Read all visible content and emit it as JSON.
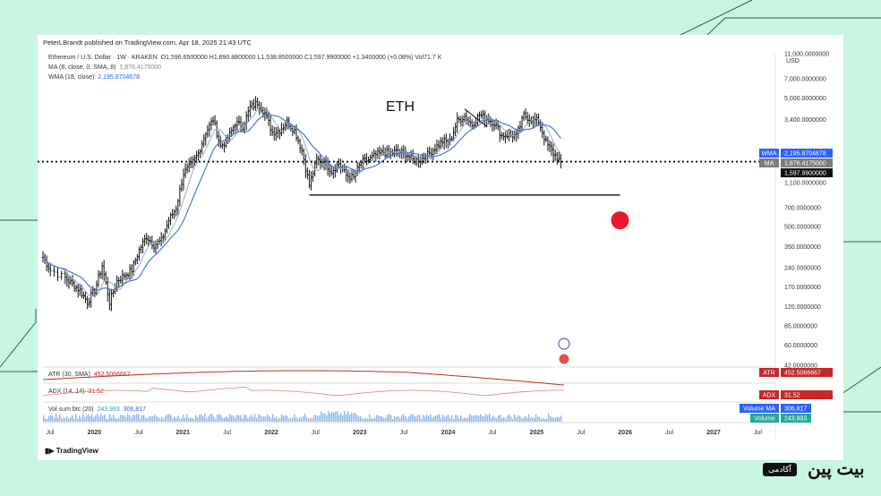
{
  "publisher": "PeterLBrandt published on TradingView.com, Apr 18, 2025 21:43 UTC",
  "legend": {
    "symbol": "Ethereum / U.S. Dollar · 1W · KRAKEN",
    "ohlc": "O1,596.6500000  H1,690.8800000  L1,538.8500000  C1,597.9900000  +1.3400000 (+0.08%)  Vol71.7 K",
    "ma_label": "MA (8, close, 0, SMA, 8)",
    "ma_value": "1,876.4175000",
    "wma_label": "WMA (18, close)",
    "wma_value": "2,195.8704678"
  },
  "colors": {
    "bars": "#111111",
    "wma": "#4a78d8",
    "ma": "#9ea9c9",
    "atr": "#c62828",
    "adx": "#f07a7a",
    "volume": "#8fb8e8",
    "volume_high": "#f2a2a2",
    "annotation_dot": "#e8182f",
    "price_tag": "#111111",
    "wma_tag": "#2962ff",
    "ma_tag": "#7c7c7c"
  },
  "chart_data": {
    "type": "ohlc",
    "currency": "USD",
    "y_scale": "log",
    "ylim": [
      42,
      11000
    ],
    "y_ticks": [
      "11,000.0000000",
      "7,000.0000000",
      "5,000.0000000",
      "3,400.0000000",
      "2,195.8704678",
      "1,876.4175000",
      "1,597.9900000",
      "1,100.0000000",
      "700.0000000",
      "500.0000000",
      "350.0000000",
      "240.0000000",
      "170.0000000",
      "120.0000000",
      "85.0000000",
      "60.0000000",
      "42.0000000"
    ],
    "x_ticks": [
      "Jul",
      "2020",
      "Jul",
      "2021",
      "Jul",
      "2022",
      "Jul",
      "2023",
      "Jul",
      "2024",
      "Jul",
      "2025",
      "Jul",
      "2026",
      "Jul",
      "2027",
      "Jul"
    ],
    "x_range": [
      "2019-06",
      "2027-09"
    ],
    "series": [
      {
        "name": "ETH/USD",
        "points": [
          [
            "2019-06",
            290
          ],
          [
            "2019-07",
            230
          ],
          [
            "2019-09",
            200
          ],
          [
            "2019-10",
            180
          ],
          [
            "2019-11",
            160
          ],
          [
            "2019-12",
            130
          ],
          [
            "2020-01",
            160
          ],
          [
            "2020-02",
            250
          ],
          [
            "2020-03",
            130
          ],
          [
            "2020-04",
            190
          ],
          [
            "2020-05",
            210
          ],
          [
            "2020-06",
            230
          ],
          [
            "2020-07",
            330
          ],
          [
            "2020-08",
            420
          ],
          [
            "2020-09",
            360
          ],
          [
            "2020-10",
            390
          ],
          [
            "2020-11",
            560
          ],
          [
            "2020-12",
            700
          ],
          [
            "2021-01",
            1300
          ],
          [
            "2021-02",
            1500
          ],
          [
            "2021-03",
            1850
          ],
          [
            "2021-04",
            2700
          ],
          [
            "2021-05",
            3400
          ],
          [
            "2021-06",
            2100
          ],
          [
            "2021-07",
            2400
          ],
          [
            "2021-08",
            3200
          ],
          [
            "2021-09",
            3000
          ],
          [
            "2021-10",
            4200
          ],
          [
            "2021-11",
            4600
          ],
          [
            "2021-12",
            3800
          ],
          [
            "2022-01",
            2700
          ],
          [
            "2022-02",
            2800
          ],
          [
            "2022-03",
            3250
          ],
          [
            "2022-04",
            2800
          ],
          [
            "2022-05",
            1950
          ],
          [
            "2022-06",
            1050
          ],
          [
            "2022-07",
            1650
          ],
          [
            "2022-08",
            1600
          ],
          [
            "2022-09",
            1350
          ],
          [
            "2022-10",
            1550
          ],
          [
            "2022-11",
            1250
          ],
          [
            "2022-12",
            1200
          ],
          [
            "2023-01",
            1580
          ],
          [
            "2023-02",
            1650
          ],
          [
            "2023-03",
            1800
          ],
          [
            "2023-04",
            1880
          ],
          [
            "2023-05",
            1870
          ],
          [
            "2023-06",
            1920
          ],
          [
            "2023-07",
            1850
          ],
          [
            "2023-08",
            1650
          ],
          [
            "2023-09",
            1650
          ],
          [
            "2023-10",
            1800
          ],
          [
            "2023-11",
            2050
          ],
          [
            "2023-12",
            2300
          ],
          [
            "2024-01",
            2280
          ],
          [
            "2024-02",
            3300
          ],
          [
            "2024-03",
            3600
          ],
          [
            "2024-04",
            3100
          ],
          [
            "2024-05",
            3700
          ],
          [
            "2024-06",
            3450
          ],
          [
            "2024-07",
            3200
          ],
          [
            "2024-08",
            2550
          ],
          [
            "2024-09",
            2600
          ],
          [
            "2024-10",
            2520
          ],
          [
            "2024-11",
            3650
          ],
          [
            "2024-12",
            3400
          ],
          [
            "2025-01",
            3300
          ],
          [
            "2025-02",
            2250
          ],
          [
            "2025-03",
            1850
          ],
          [
            "2025-04",
            1598
          ]
        ]
      },
      {
        "name": "WMA (18, close)",
        "last": 2195.8704678
      },
      {
        "name": "MA (8, close, 0, SMA, 8)",
        "last": 1876.4175
      }
    ],
    "annotations": {
      "text": "ETH",
      "support_level": 880,
      "support_range": [
        "2022-06",
        "2025-12"
      ],
      "dotted_level": 1597.99,
      "dot_position": [
        "2025-12",
        560
      ],
      "neckline_1": [
        [
          "2024-03",
          4100
        ],
        [
          "2024-06",
          3000
        ]
      ]
    },
    "indicators": [
      {
        "name": "ATR (30, SMA)",
        "value": "452.5066667",
        "tag": "ATR"
      },
      {
        "name": "ADX (14, 14)",
        "value": "31.52",
        "tag": "ADX"
      },
      {
        "name": "Vol sum btc (20)",
        "value": "243,993",
        "value2": "306,817",
        "tag": "Volume",
        "tag2": "Volume MA"
      }
    ]
  },
  "tags": {
    "wma": "WMA",
    "ma": "MA",
    "atr": "ATR",
    "adx": "ADX",
    "volume_ma": "Volume MA",
    "volume": "Volume"
  },
  "footer": {
    "tradingview": "TradingView",
    "brand": "بیت پین",
    "brand_tag": "آکادمی"
  }
}
